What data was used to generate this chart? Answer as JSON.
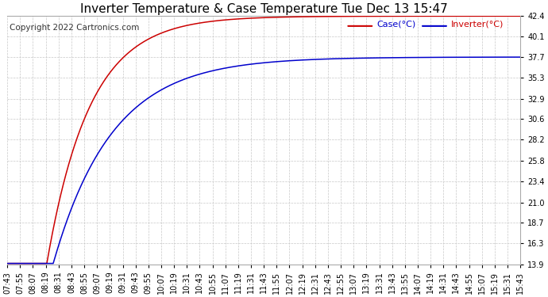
{
  "title": "Inverter Temperature & Case Temperature Tue Dec 13 15:47",
  "copyright": "Copyright 2022 Cartronics.com",
  "legend_case": "Case(°C)",
  "legend_inverter": "Inverter(°C)",
  "case_color": "#0000cc",
  "inverter_color": "#cc0000",
  "background_color": "#ffffff",
  "grid_color": "#c8c8c8",
  "ylim": [
    13.9,
    42.4
  ],
  "yticks": [
    13.9,
    16.3,
    18.7,
    21.0,
    23.4,
    25.8,
    28.2,
    30.6,
    32.9,
    35.3,
    37.7,
    40.1,
    42.4
  ],
  "title_fontsize": 11,
  "tick_fontsize": 7,
  "copyright_fontsize": 7.5
}
